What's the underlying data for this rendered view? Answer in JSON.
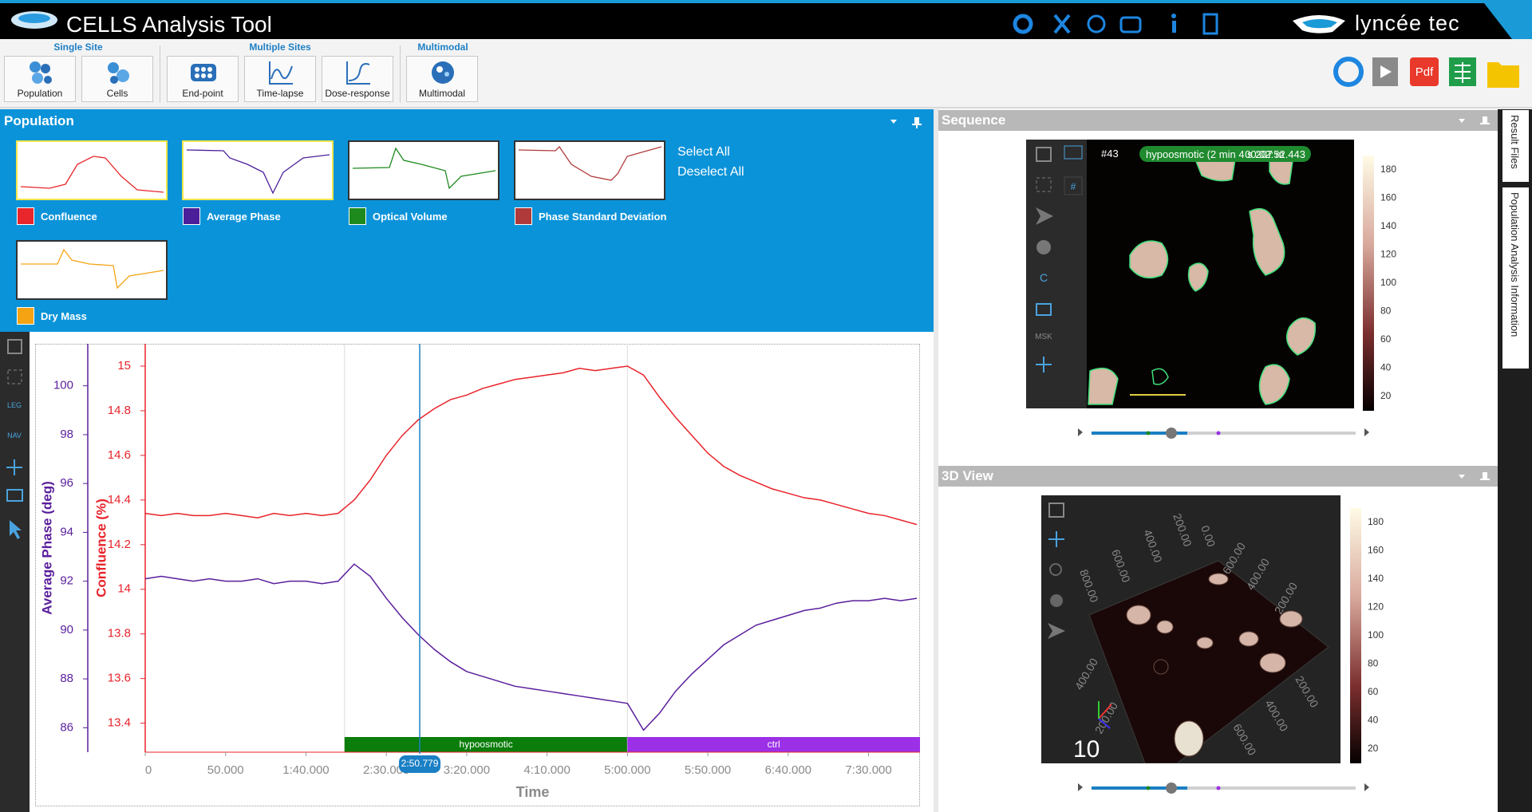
{
  "app": {
    "title": "CELLS Analysis Tool",
    "brand": "lyncée tec"
  },
  "ribbon": {
    "groups": [
      {
        "label": "Single Site",
        "buttons": [
          "Population",
          "Cells"
        ]
      },
      {
        "label": "Multiple Sites",
        "buttons": [
          "End-point",
          "Time-lapse",
          "Dose-response"
        ]
      },
      {
        "label": "Multimodal",
        "buttons": [
          "Multimodal"
        ]
      }
    ],
    "pdf_icon": "Pdf"
  },
  "population": {
    "title": "Population",
    "select_all": "Select All",
    "deselect_all": "Deselect All",
    "parameters": [
      {
        "label": "Confluence",
        "color": "#e8262b",
        "selected": true
      },
      {
        "label": "Average Phase",
        "color": "#4b1e9a",
        "selected": true
      },
      {
        "label": "Optical Volume",
        "color": "#1e8a1e",
        "selected": false
      },
      {
        "label": "Phase Standard Deviation",
        "color": "#b03a3a",
        "selected": false
      },
      {
        "label": "Dry Mass",
        "color": "#f5a313",
        "selected": false
      }
    ]
  },
  "toolbar": {
    "leg": "LEG",
    "nav": "NAV"
  },
  "chart_data": {
    "type": "line",
    "xlabel": "Time",
    "ylabel": "Average Phase (deg)",
    "y2label": "Confluence (%)",
    "x": [
      0,
      10,
      20,
      30,
      40,
      50,
      60,
      70,
      80,
      90,
      100,
      110,
      120,
      130,
      140,
      150,
      160,
      170,
      180,
      190,
      200,
      210,
      220,
      230,
      240,
      250,
      260,
      270,
      280,
      290,
      300,
      310,
      320,
      330,
      340,
      350,
      360,
      370,
      380,
      390,
      400,
      410,
      420,
      430,
      440,
      450,
      460,
      470,
      480
    ],
    "xlim": [
      0,
      482
    ],
    "xticks": [
      0,
      {
        "value": 50,
        "label": "50.000"
      },
      {
        "value": 100,
        "label": "1:40.000"
      },
      {
        "value": 150,
        "label": "2:30.000"
      },
      {
        "value": 200,
        "label": "3:20.000"
      },
      {
        "value": 250,
        "label": "4:10.000"
      },
      {
        "value": 300,
        "label": "5:00.000"
      },
      {
        "value": 350,
        "label": "5:50.000"
      },
      {
        "value": 400,
        "label": "6:40.000"
      },
      {
        "value": 450,
        "label": "7:30.000"
      }
    ],
    "ylim": [
      85,
      101.72
    ],
    "yticks": [
      86,
      88,
      90,
      92,
      94,
      96,
      98,
      100
    ],
    "y2lim": [
      13.27,
      15.1
    ],
    "y2ticks": [
      13.4,
      13.6,
      13.8,
      14,
      14.2,
      14.4,
      14.6,
      14.8,
      15
    ],
    "series": [
      {
        "axis": "y2",
        "color": "#e8232a",
        "values": [
          14.34,
          14.33,
          14.34,
          14.33,
          14.33,
          14.34,
          14.33,
          14.32,
          14.34,
          14.33,
          14.34,
          14.33,
          14.34,
          14.4,
          14.49,
          14.6,
          14.69,
          14.76,
          14.81,
          14.85,
          14.87,
          14.9,
          14.92,
          14.94,
          14.95,
          14.96,
          14.97,
          14.99,
          14.98,
          14.99,
          15,
          14.96,
          14.86,
          14.77,
          14.69,
          14.61,
          14.55,
          14.51,
          14.48,
          14.45,
          14.43,
          14.41,
          14.4,
          14.38,
          14.36,
          14.34,
          14.33,
          14.31,
          14.29
        ]
      },
      {
        "axis": "y",
        "color": "#5a1e9c",
        "values": [
          92.1,
          92.2,
          92.1,
          92,
          92.1,
          92,
          92,
          92.1,
          91.9,
          92,
          92,
          91.9,
          92,
          92.7,
          92.2,
          91.3,
          90.5,
          89.8,
          89.2,
          88.7,
          88.3,
          88.1,
          87.9,
          87.7,
          87.6,
          87.5,
          87.4,
          87.3,
          87.2,
          87.1,
          87,
          85.9,
          86.6,
          87.5,
          88.2,
          88.8,
          89.4,
          89.8,
          90.2,
          90.4,
          90.6,
          90.8,
          90.9,
          91.1,
          91.2,
          91.2,
          91.3,
          91.2,
          91.3
        ]
      }
    ],
    "phases": [
      {
        "label": "hypoosmotic",
        "start": 124,
        "end": 300,
        "color": "#0a7d0a"
      },
      {
        "label": "ctrl",
        "start": 300,
        "end": 482,
        "color": "#9b30e6"
      }
    ],
    "cursor": {
      "value": 170.779,
      "label": "2:50.779",
      "color": "#1a7fc4"
    }
  },
  "sequence": {
    "title": "Sequence",
    "frame": "#43",
    "overlay": "hypoosmotic (2 min 4 s 207 m",
    "timestamp": "00:02:52.443",
    "tools": [
      "C",
      "MSK",
      "#"
    ],
    "colorbar_ticks": [
      180,
      160,
      140,
      120,
      100,
      80,
      60,
      40,
      20
    ]
  },
  "view3d": {
    "title": "3D View",
    "zoom": "10",
    "colorbar_ticks": [
      180,
      160,
      140,
      120,
      100,
      80,
      60,
      40,
      20
    ],
    "axis_labels": [
      "800.00",
      "600.00",
      "400.00",
      "200.00",
      "0.00",
      "600.00",
      "400.00",
      "200.00",
      "200.00",
      "400.00",
      "600.00",
      "400.00",
      "200.00"
    ]
  },
  "side_tabs": [
    "Result Files",
    "Population Analysis Information"
  ]
}
